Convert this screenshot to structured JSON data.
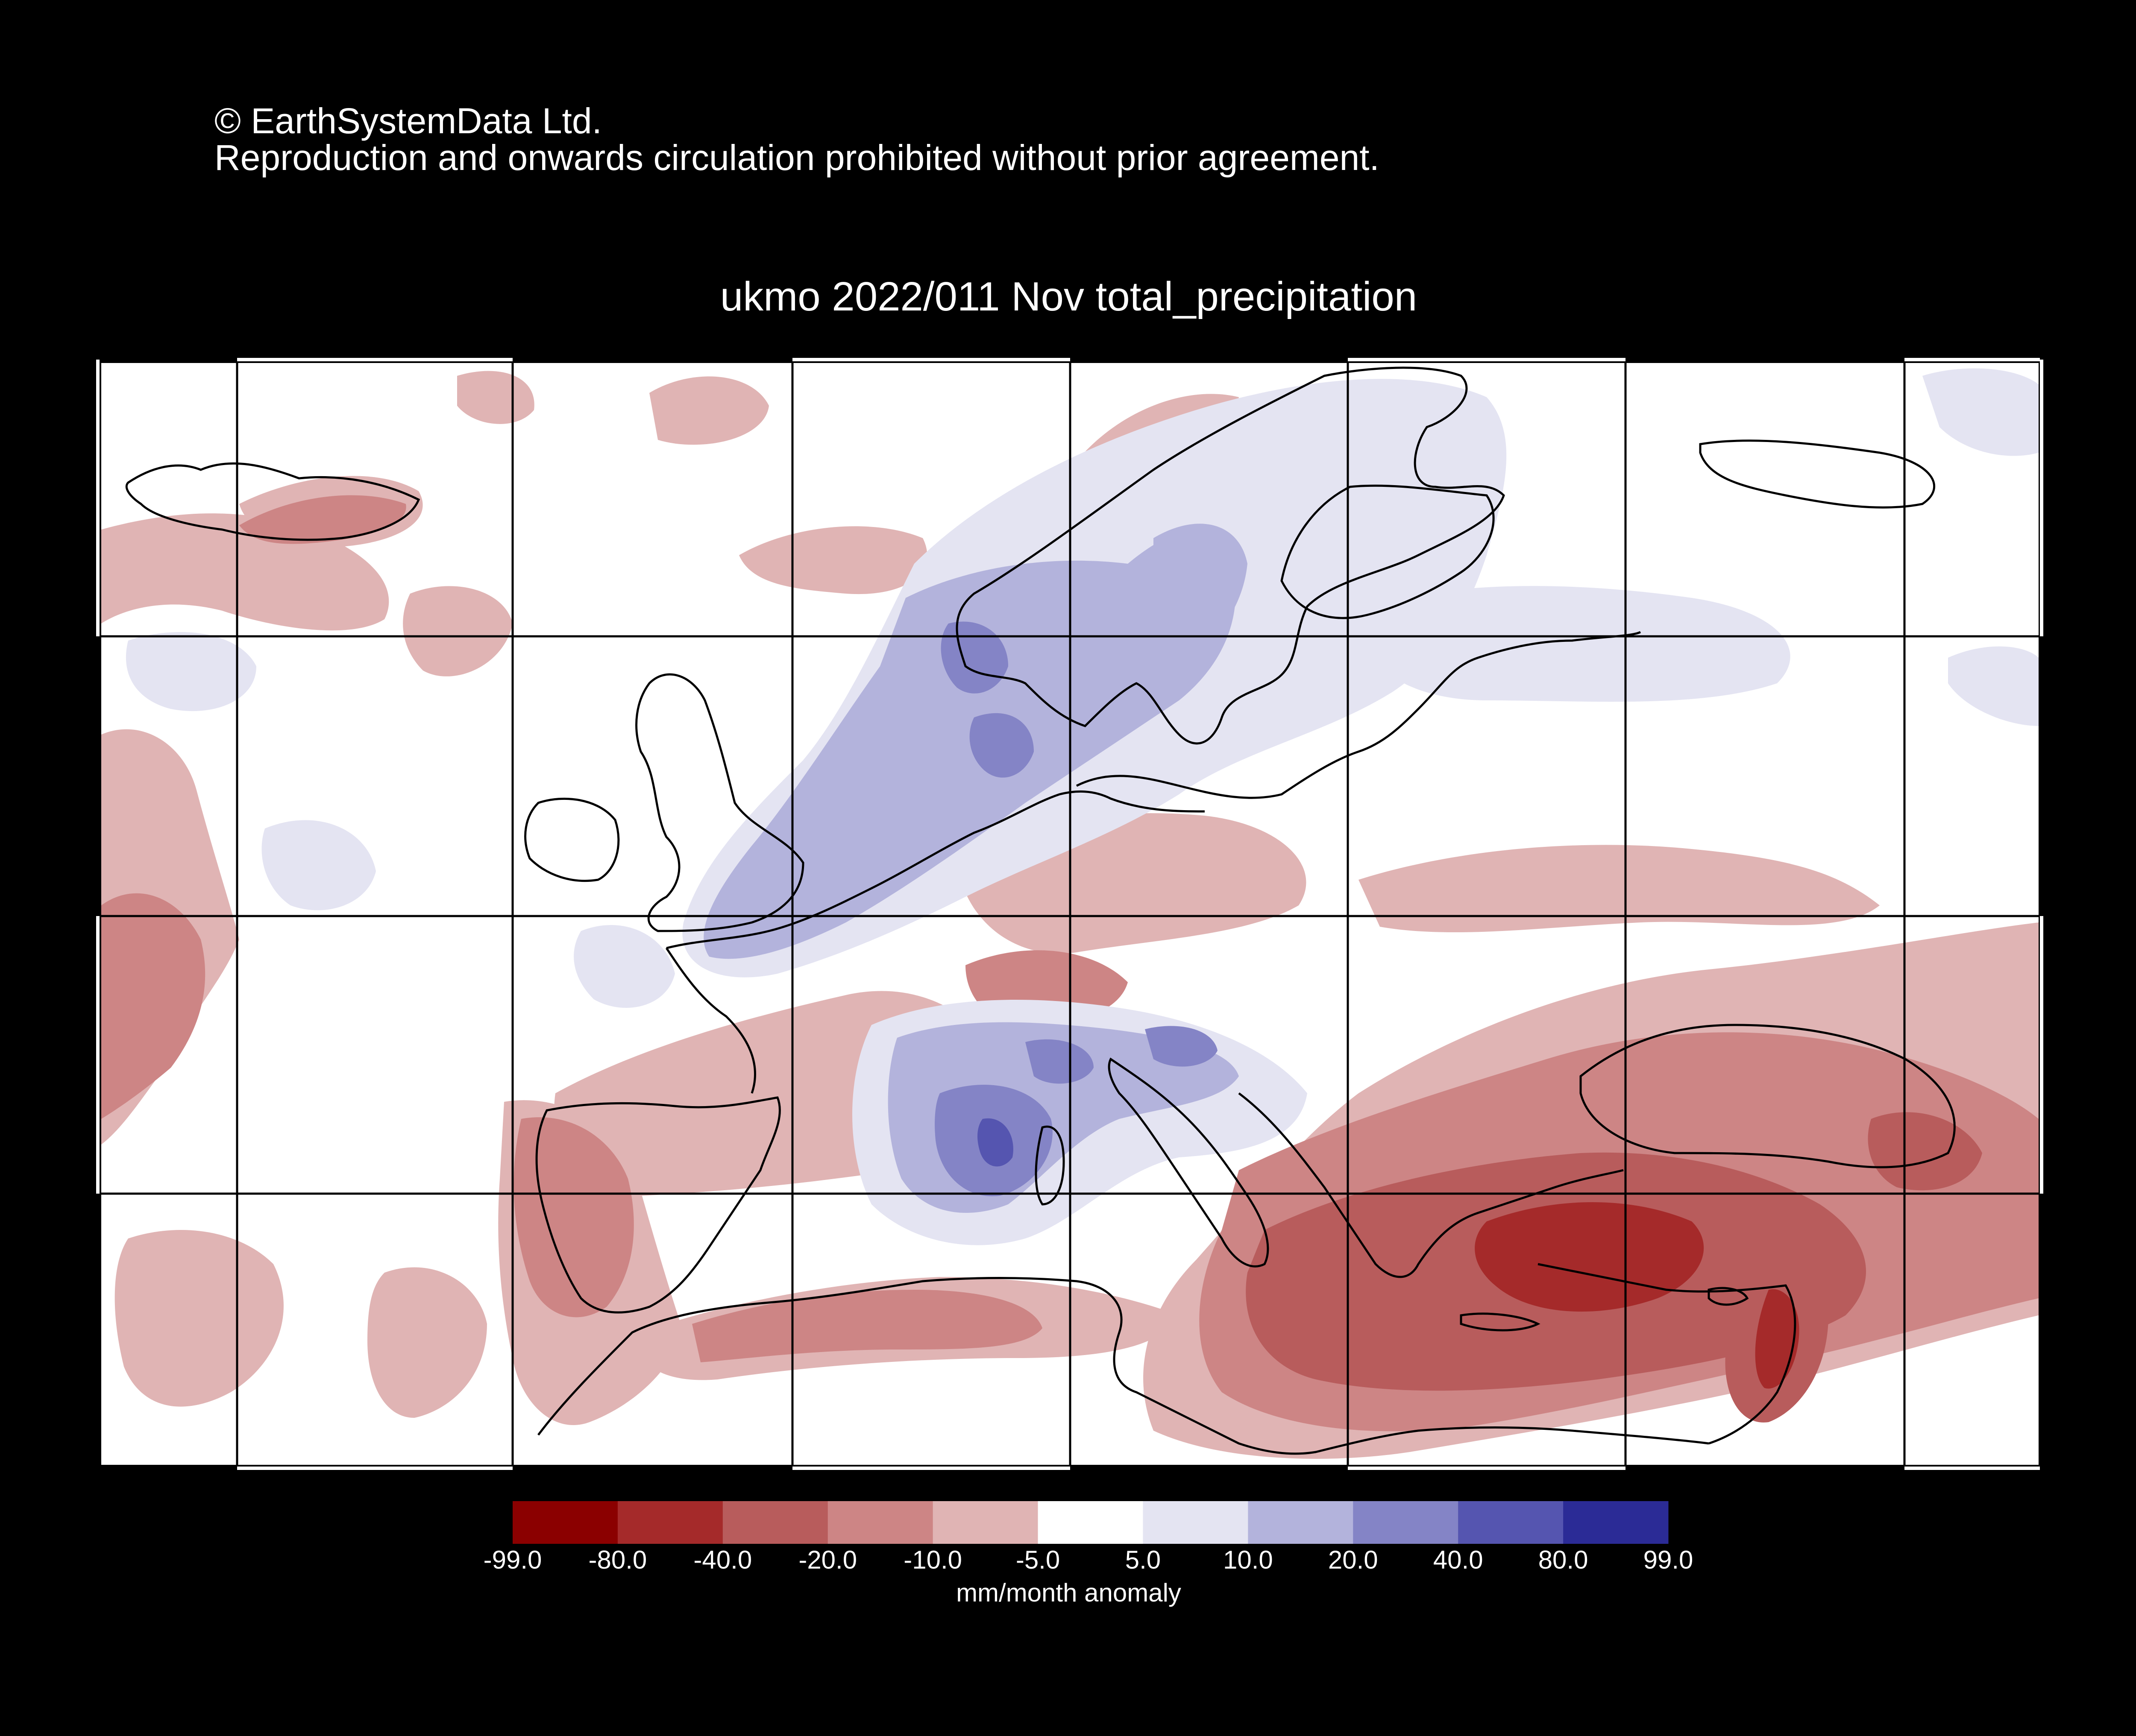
{
  "header": {
    "copyright_line1": "© EarthSystemData Ltd.",
    "copyright_line2": "Reproduction and onwards circulation prohibited without prior agreement."
  },
  "map": {
    "title": "ukmo 2022/011 Nov total_precipitation",
    "region": "Europe and Mediterranean",
    "variable": "total_precipitation",
    "colors": {
      "background": "#000000",
      "land_outline": "#000000",
      "graticule": "#000000"
    },
    "anomaly_areas": [
      {
        "name": "north-atlantic-south-iceland",
        "class": "-20 to -10"
      },
      {
        "name": "north-sea-scandinavia",
        "class": "10 to 20"
      },
      {
        "name": "gulf-of-lion-western-med",
        "class": "20 to 40"
      },
      {
        "name": "iberia",
        "class": "-20 to -10"
      },
      {
        "name": "turkey-eastern-med",
        "class": "-40 to -20"
      },
      {
        "name": "aegean",
        "class": "-80 to -40"
      },
      {
        "name": "eastern-europe",
        "class": "-10 to -5"
      }
    ]
  },
  "colorbar": {
    "units": "mm/month anomaly",
    "ticks": [
      "-99.0",
      "-80.0",
      "-40.0",
      "-20.0",
      "-10.0",
      "-5.0",
      "5.0",
      "10.0",
      "20.0",
      "40.0",
      "80.0",
      "99.0"
    ],
    "colors": [
      "#8b0000",
      "#a52a2a",
      "#b85c5c",
      "#cd8585",
      "#e0b4b4",
      "#ffffff",
      "#e4e4f2",
      "#b3b3dc",
      "#8484c6",
      "#5555b0",
      "#2b2b96"
    ]
  }
}
